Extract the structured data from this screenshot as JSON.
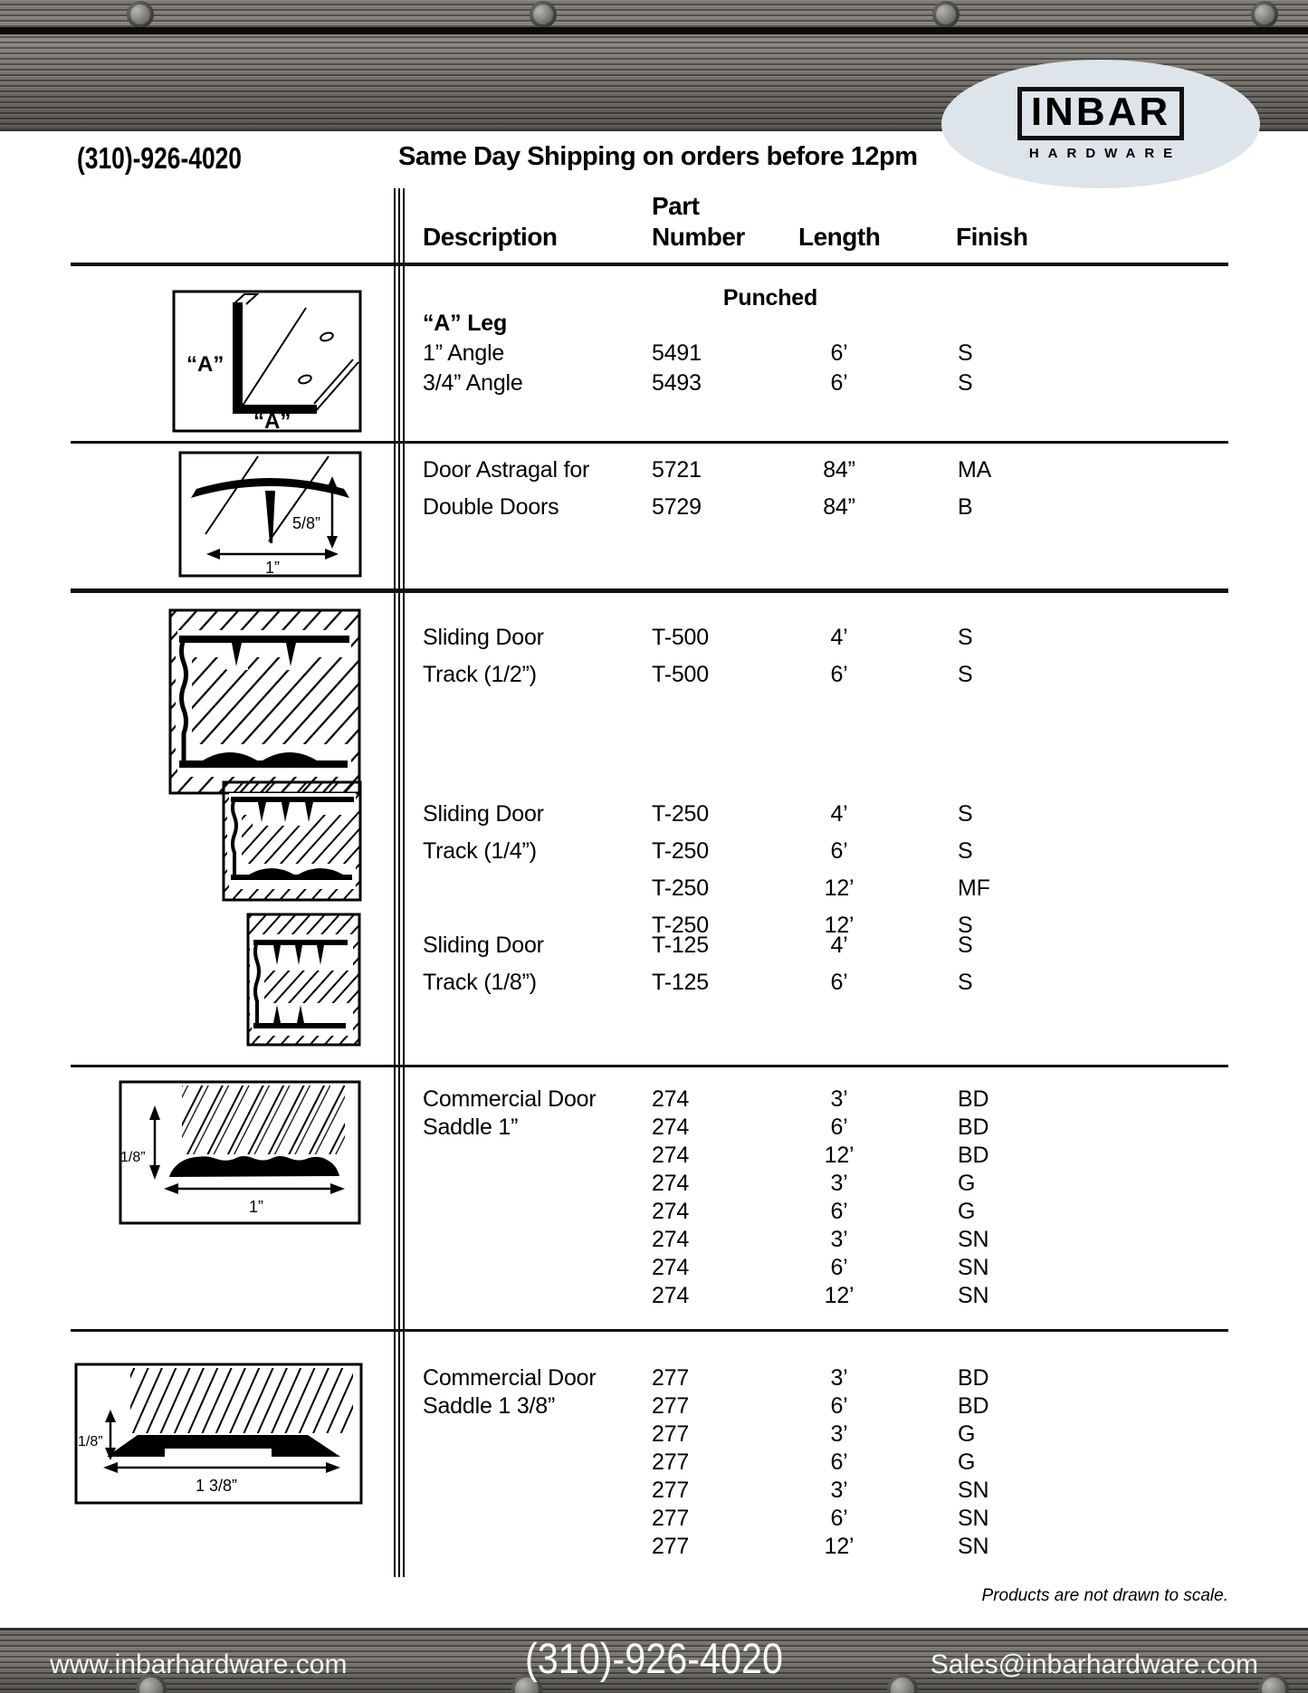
{
  "header": {
    "phone": "(310)-926-4020",
    "shipping_banner": "Same Day Shipping on orders before 12pm",
    "logo": {
      "name": "INBAR",
      "subname": "HARDWARE"
    }
  },
  "table": {
    "col_labels": {
      "part_line1": "Part",
      "description": "Description",
      "part_line2": "Number",
      "length": "Length",
      "finish": "Finish"
    },
    "sections": [
      {
        "name": "a-leg-angles",
        "note": "Punched",
        "rows": [
          {
            "desc": "“A” Leg",
            "part": "",
            "length": "",
            "finish": "",
            "b": true
          },
          {
            "desc": "1” Angle",
            "part": "5491",
            "length": "6’",
            "finish": "S"
          },
          {
            "desc": "3/4” Angle",
            "part": "5493",
            "length": "6’",
            "finish": "S"
          }
        ]
      },
      {
        "name": "door-astragal",
        "rows": [
          {
            "desc": "Door Astragal for",
            "part": "5721",
            "length": "84”",
            "finish": "MA"
          },
          {
            "desc": "Double Doors",
            "part": "5729",
            "length": "84”",
            "finish": "B"
          }
        ]
      },
      {
        "name": "sliding-door-track-half",
        "rows": [
          {
            "desc": "Sliding Door",
            "part": "T-500",
            "length": "4’",
            "finish": "S"
          },
          {
            "desc": "Track (1/2”)",
            "part": "T-500",
            "length": "6’",
            "finish": "S"
          }
        ]
      },
      {
        "name": "sliding-door-track-quarter",
        "rows": [
          {
            "desc": "Sliding Door",
            "part": "T-250",
            "length": "4’",
            "finish": "S"
          },
          {
            "desc": "Track  (1/4”)",
            "part": "T-250",
            "length": "6’",
            "finish": "S"
          },
          {
            "desc": "",
            "part": "T-250",
            "length": "12’",
            "finish": "MF"
          },
          {
            "desc": "",
            "part": "T-250",
            "length": "12’",
            "finish": "S"
          }
        ]
      },
      {
        "name": "sliding-door-track-eighth",
        "rows": [
          {
            "desc": "Sliding Door",
            "part": "T-125",
            "length": "4’",
            "finish": "S"
          },
          {
            "desc": "Track (1/8”)",
            "part": "T-125",
            "length": "6’",
            "finish": "S"
          }
        ]
      },
      {
        "name": "commercial-door-saddle-1in",
        "rows": [
          {
            "desc": "Commercial Door",
            "part": "274",
            "length": "3’",
            "finish": "BD"
          },
          {
            "desc": "Saddle 1”",
            "part": "274",
            "length": "6’",
            "finish": "BD"
          },
          {
            "desc": "",
            "part": "274",
            "length": "12’",
            "finish": "BD"
          },
          {
            "desc": "",
            "part": "274",
            "length": "3’",
            "finish": "G"
          },
          {
            "desc": "",
            "part": "274",
            "length": "6’",
            "finish": "G"
          },
          {
            "desc": "",
            "part": "274",
            "length": "3’",
            "finish": "SN"
          },
          {
            "desc": "",
            "part": "274",
            "length": "6’",
            "finish": "SN"
          },
          {
            "desc": "",
            "part": "274",
            "length": "12’",
            "finish": "SN"
          }
        ]
      },
      {
        "name": "commercial-door-saddle-1-3-8in",
        "rows": [
          {
            "desc": "Commercial Door",
            "part": "277",
            "length": "3’",
            "finish": "BD"
          },
          {
            "desc": "Saddle 1 3/8”",
            "part": "277",
            "length": "6’",
            "finish": "BD"
          },
          {
            "desc": "",
            "part": "277",
            "length": "3’",
            "finish": "G"
          },
          {
            "desc": "",
            "part": "277",
            "length": "6’",
            "finish": "G"
          },
          {
            "desc": "",
            "part": "277",
            "length": "3’",
            "finish": "SN"
          },
          {
            "desc": "",
            "part": "277",
            "length": "6’",
            "finish": "SN"
          },
          {
            "desc": "",
            "part": "277",
            "length": "12’",
            "finish": "SN"
          }
        ]
      }
    ]
  },
  "diagrams": {
    "angle": {
      "label_left": "“A”",
      "label_bottom": "“A”"
    },
    "astragal": {
      "dim_height": "5/8”",
      "dim_width": "1”"
    },
    "saddle_1": {
      "dim_height": "1/8”",
      "dim_width": "1”"
    },
    "saddle_138": {
      "dim_height": "1/8”",
      "dim_width": "1 3/8”"
    }
  },
  "footnote": "Products are not drawn to scale.",
  "footer": {
    "website": "www.inbarhardware.com",
    "phone": "(310)-926-4020",
    "email": "Sales@inbarhardware.com"
  },
  "colors": {
    "logo_bg": "#dee5ea",
    "band_dark": "#4e4c49",
    "band_mid": "#7d7a74",
    "text": "#000000",
    "footer_text": "#f4f4f2"
  }
}
